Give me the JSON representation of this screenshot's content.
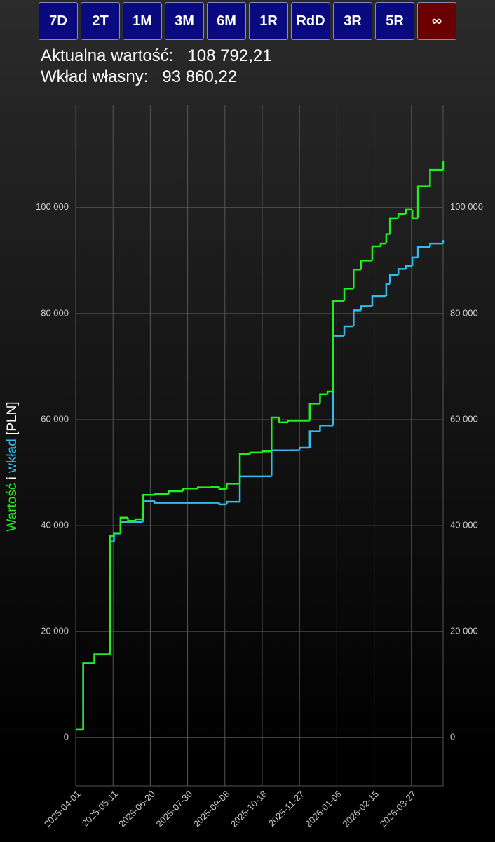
{
  "buttons": [
    "7D",
    "2T",
    "1M",
    "3M",
    "6M",
    "1R",
    "RdD",
    "3R",
    "5R",
    "∞"
  ],
  "selected": 9,
  "summary": {
    "current_label": "Aktualna wartość:",
    "current_value": "108 792,21",
    "own_label": "Wkład własny:",
    "own_value": "93 860,22"
  },
  "chart_data": {
    "type": "line",
    "step": true,
    "ylabel_connector": "i",
    "ylabel_unit": "[PLN]",
    "x": [
      "2025-04-01",
      "2025-04-09",
      "2025-04-21",
      "2025-05-08",
      "2025-05-12",
      "2025-05-19",
      "2025-05-27",
      "2025-06-04",
      "2025-06-12",
      "2025-06-25",
      "2025-07-10",
      "2025-07-25",
      "2025-08-10",
      "2025-08-25",
      "2025-09-02",
      "2025-09-10",
      "2025-09-24",
      "2025-10-05",
      "2025-10-18",
      "2025-10-28",
      "2025-11-05",
      "2025-11-15",
      "2025-11-27",
      "2025-12-08",
      "2025-12-19",
      "2025-12-27",
      "2026-01-02",
      "2026-01-14",
      "2026-01-24",
      "2026-02-01",
      "2026-02-13",
      "2026-02-22",
      "2026-02-28",
      "2026-03-04",
      "2026-03-13",
      "2026-03-21",
      "2026-03-28",
      "2026-04-03",
      "2026-04-16",
      "2026-04-30"
    ],
    "series": [
      {
        "name": "Wartość",
        "color": "#22ee22",
        "values": [
          1500,
          14000,
          15700,
          38000,
          38600,
          41500,
          40900,
          41200,
          45800,
          46000,
          46500,
          47000,
          47200,
          47300,
          46900,
          47900,
          53500,
          53800,
          54000,
          60400,
          59500,
          59800,
          59800,
          63000,
          64800,
          65300,
          82400,
          84700,
          88300,
          90000,
          92700,
          93200,
          95000,
          98000,
          98800,
          99600,
          98000,
          104000,
          107100,
          108792.21
        ]
      },
      {
        "name": "wkład",
        "color": "#33bbee",
        "values": [
          1500,
          14000,
          15700,
          37000,
          38500,
          40700,
          40700,
          40700,
          44600,
          44300,
          44300,
          44300,
          44300,
          44300,
          44000,
          44500,
          49300,
          49300,
          49300,
          54200,
          54200,
          54200,
          54700,
          57800,
          58900,
          58900,
          75800,
          77600,
          80600,
          81400,
          83300,
          83300,
          85600,
          87300,
          88400,
          89000,
          90600,
          92600,
          93200,
          93860.22
        ]
      }
    ],
    "xlim": [
      "2025-04-01",
      "2026-04-30"
    ],
    "xticks": [
      "2025-04-01",
      "2025-05-11",
      "2025-06-20",
      "2025-07-30",
      "2025-09-08",
      "2025-10-18",
      "2025-11-27",
      "2026-01-06",
      "2026-02-15",
      "2026-03-27"
    ],
    "ylim": [
      -9100,
      119300
    ],
    "yticks": [
      0,
      {
        "value": 20000,
        "label": "20 000"
      },
      {
        "value": 40000,
        "label": "40 000"
      },
      {
        "value": 60000,
        "label": "60 000"
      },
      {
        "value": 80000,
        "label": "80 000"
      },
      {
        "value": 100000,
        "label": "100 000"
      }
    ],
    "grid": true
  }
}
